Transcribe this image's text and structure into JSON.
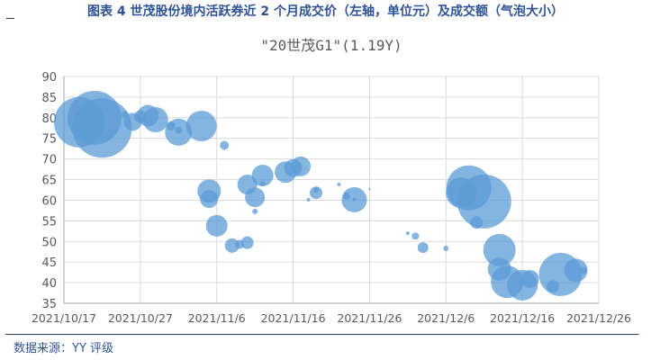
{
  "figure_title": "图表 4 世茂股份境内活跃券近 2 个月成交价（左轴，单位元）及成交额（气泡大小）",
  "source": "数据来源：YY 评级",
  "chart_data": {
    "type": "scatter",
    "subtype": "bubble",
    "title": "\"20世茂G1\"(1.19Y)",
    "xlabel": "",
    "ylabel": "",
    "ylim": [
      35,
      90
    ],
    "yticks": [
      35,
      40,
      45,
      50,
      55,
      60,
      65,
      70,
      75,
      80,
      85,
      90
    ],
    "xlim": [
      "2021-10-17",
      "2021-12-26"
    ],
    "xtick_labels": [
      "2021/10/17",
      "2021/10/27",
      "2021/11/6",
      "2021/11/16",
      "2021/11/26",
      "2021/12/6",
      "2021/12/16",
      "2021/12/26"
    ],
    "grid": true,
    "color": "#5b9bd5",
    "size_note_unit": "relative",
    "points": [
      {
        "x": "2021-10-19",
        "y": 78.9,
        "size": 780
      },
      {
        "x": "2021-10-21",
        "y": 80.0,
        "size": 900
      },
      {
        "x": "2021-10-22",
        "y": 77.5,
        "size": 1090
      },
      {
        "x": "2021-10-25",
        "y": 80.8,
        "size": 16
      },
      {
        "x": "2021-10-26",
        "y": 79.0,
        "size": 100
      },
      {
        "x": "2021-10-27",
        "y": 80.3,
        "size": 49
      },
      {
        "x": "2021-10-28",
        "y": 80.5,
        "size": 144
      },
      {
        "x": "2021-10-29",
        "y": 79.5,
        "size": 196
      },
      {
        "x": "2021-10-31",
        "y": 78.0,
        "size": 25
      },
      {
        "x": "2021-11-01",
        "y": 77.0,
        "size": 16
      },
      {
        "x": "2021-11-01",
        "y": 76.5,
        "size": 225
      },
      {
        "x": "2021-11-04",
        "y": 78.0,
        "size": 289
      },
      {
        "x": "2021-11-07",
        "y": 73.3,
        "size": 25
      },
      {
        "x": "2021-11-05",
        "y": 62.2,
        "size": 169
      },
      {
        "x": "2021-11-05",
        "y": 60.3,
        "size": 100
      },
      {
        "x": "2021-11-06",
        "y": 53.8,
        "size": 144
      },
      {
        "x": "2021-11-08",
        "y": 49.0,
        "size": 64
      },
      {
        "x": "2021-11-09",
        "y": 49.3,
        "size": 25
      },
      {
        "x": "2021-11-10",
        "y": 49.7,
        "size": 49
      },
      {
        "x": "2021-11-10",
        "y": 63.8,
        "size": 121
      },
      {
        "x": "2021-11-11",
        "y": 60.7,
        "size": 121
      },
      {
        "x": "2021-11-11",
        "y": 57.3,
        "size": 9
      },
      {
        "x": "2021-11-12",
        "y": 66.0,
        "size": 144
      },
      {
        "x": "2021-11-12",
        "y": 64.0,
        "size": 9
      },
      {
        "x": "2021-11-15",
        "y": 66.8,
        "size": 144
      },
      {
        "x": "2021-11-16",
        "y": 67.8,
        "size": 100
      },
      {
        "x": "2021-11-17",
        "y": 68.2,
        "size": 121
      },
      {
        "x": "2021-11-19",
        "y": 61.8,
        "size": 49
      },
      {
        "x": "2021-11-18",
        "y": 60.1,
        "size": 4
      },
      {
        "x": "2021-11-19",
        "y": 62.5,
        "size": 9
      },
      {
        "x": "2021-11-22",
        "y": 63.8,
        "size": 4
      },
      {
        "x": "2021-11-24",
        "y": 60.1,
        "size": 196
      },
      {
        "x": "2021-11-23",
        "y": 61.0,
        "size": 16
      },
      {
        "x": "2021-11-24",
        "y": 60.2,
        "size": 4
      },
      {
        "x": "2021-11-26",
        "y": 62.7,
        "size": 1
      },
      {
        "x": "2021-12-01",
        "y": 52.0,
        "size": 4
      },
      {
        "x": "2021-12-02",
        "y": 51.3,
        "size": 16
      },
      {
        "x": "2021-12-03",
        "y": 48.5,
        "size": 36
      },
      {
        "x": "2021-12-06",
        "y": 48.3,
        "size": 9
      },
      {
        "x": "2021-12-08",
        "y": 61.8,
        "size": 289
      },
      {
        "x": "2021-12-09",
        "y": 63.0,
        "size": 625
      },
      {
        "x": "2021-12-11",
        "y": 59.7,
        "size": 900
      },
      {
        "x": "2021-12-10",
        "y": 54.6,
        "size": 49
      },
      {
        "x": "2021-12-13",
        "y": 47.9,
        "size": 324
      },
      {
        "x": "2021-12-13",
        "y": 43.3,
        "size": 169
      },
      {
        "x": "2021-12-14",
        "y": 40.2,
        "size": 324
      },
      {
        "x": "2021-12-16",
        "y": 39.4,
        "size": 289
      },
      {
        "x": "2021-12-17",
        "y": 40.9,
        "size": 100
      },
      {
        "x": "2021-12-20",
        "y": 39.1,
        "size": 49
      },
      {
        "x": "2021-12-21",
        "y": 42.0,
        "size": 576
      },
      {
        "x": "2021-12-23",
        "y": 43.0,
        "size": 169
      },
      {
        "x": "2021-12-24",
        "y": 43.0,
        "size": 16
      }
    ]
  }
}
